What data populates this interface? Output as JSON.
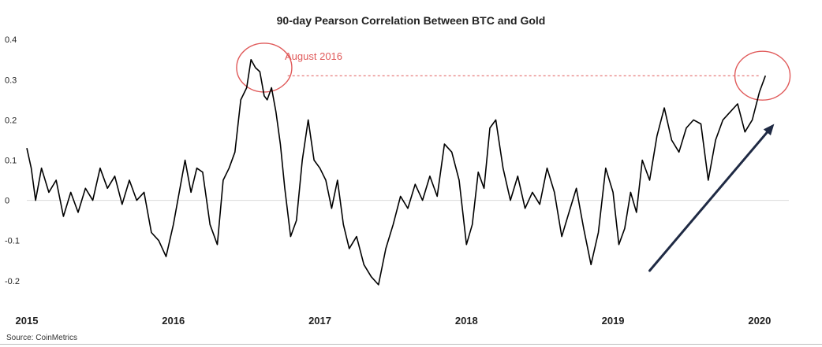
{
  "chart_data": {
    "type": "line",
    "title": "90-day Pearson Correlation Between BTC and Gold",
    "xlabel": "",
    "ylabel": "",
    "xlim": [
      2015.0,
      2020.2
    ],
    "ylim": [
      -0.22,
      0.42
    ],
    "y_ticks": [
      "0.4",
      "0.3",
      "0.2",
      "0.1",
      "0",
      "-0.1",
      "-0.2"
    ],
    "x_ticks": [
      "2015",
      "2016",
      "2017",
      "2018",
      "2019",
      "2020"
    ],
    "grid": false,
    "zero_line": true,
    "series": [
      {
        "name": "",
        "color": "#000000",
        "x": [
          2015.0,
          2015.03,
          2015.06,
          2015.1,
          2015.15,
          2015.2,
          2015.25,
          2015.3,
          2015.35,
          2015.4,
          2015.45,
          2015.5,
          2015.55,
          2015.6,
          2015.65,
          2015.7,
          2015.75,
          2015.8,
          2015.85,
          2015.9,
          2015.95,
          2016.0,
          2016.04,
          2016.08,
          2016.12,
          2016.16,
          2016.2,
          2016.25,
          2016.3,
          2016.34,
          2016.38,
          2016.42,
          2016.46,
          2016.5,
          2016.53,
          2016.56,
          2016.59,
          2016.62,
          2016.64,
          2016.67,
          2016.7,
          2016.73,
          2016.76,
          2016.8,
          2016.84,
          2016.88,
          2016.92,
          2016.96,
          2017.0,
          2017.04,
          2017.08,
          2017.12,
          2017.16,
          2017.2,
          2017.25,
          2017.3,
          2017.35,
          2017.4,
          2017.45,
          2017.5,
          2017.55,
          2017.6,
          2017.65,
          2017.7,
          2017.75,
          2017.8,
          2017.85,
          2017.9,
          2017.95,
          2018.0,
          2018.04,
          2018.08,
          2018.12,
          2018.16,
          2018.2,
          2018.25,
          2018.3,
          2018.35,
          2018.4,
          2018.45,
          2018.5,
          2018.55,
          2018.6,
          2018.65,
          2018.7,
          2018.75,
          2018.8,
          2018.85,
          2018.9,
          2018.95,
          2019.0,
          2019.04,
          2019.08,
          2019.12,
          2019.16,
          2019.2,
          2019.25,
          2019.3,
          2019.35,
          2019.4,
          2019.45,
          2019.5,
          2019.55,
          2019.6,
          2019.65,
          2019.7,
          2019.75,
          2019.8,
          2019.85,
          2019.9,
          2019.95,
          2020.0,
          2020.04
        ],
        "y": [
          0.13,
          0.08,
          0.0,
          0.08,
          0.02,
          0.05,
          -0.04,
          0.02,
          -0.03,
          0.03,
          0.0,
          0.08,
          0.03,
          0.06,
          -0.01,
          0.05,
          0.0,
          0.02,
          -0.08,
          -0.1,
          -0.14,
          -0.06,
          0.02,
          0.1,
          0.02,
          0.08,
          0.07,
          -0.06,
          -0.11,
          0.05,
          0.08,
          0.12,
          0.25,
          0.28,
          0.35,
          0.33,
          0.32,
          0.26,
          0.25,
          0.28,
          0.22,
          0.14,
          0.03,
          -0.09,
          -0.05,
          0.1,
          0.2,
          0.1,
          0.08,
          0.05,
          -0.02,
          0.05,
          -0.06,
          -0.12,
          -0.09,
          -0.16,
          -0.19,
          -0.21,
          -0.12,
          -0.06,
          0.01,
          -0.02,
          0.04,
          0.0,
          0.06,
          0.01,
          0.14,
          0.12,
          0.05,
          -0.11,
          -0.06,
          0.07,
          0.03,
          0.18,
          0.2,
          0.08,
          0.0,
          0.06,
          -0.02,
          0.02,
          -0.01,
          0.08,
          0.02,
          -0.09,
          -0.03,
          0.03,
          -0.07,
          -0.16,
          -0.08,
          0.08,
          0.02,
          -0.11,
          -0.07,
          0.02,
          -0.03,
          0.1,
          0.05,
          0.16,
          0.23,
          0.15,
          0.12,
          0.18,
          0.2,
          0.19,
          0.05,
          0.15,
          0.2,
          0.22,
          0.24,
          0.17,
          0.2,
          0.27,
          0.31
        ]
      }
    ],
    "annotations": [
      {
        "type": "text",
        "text": "August 2016",
        "color": "#e05a5a"
      },
      {
        "type": "circle",
        "x": 2016.62,
        "y": 0.33,
        "color": "#e05a5a"
      },
      {
        "type": "circle",
        "x": 2020.02,
        "y": 0.31,
        "color": "#e05a5a"
      },
      {
        "type": "dashed_line",
        "x_from": 2016.78,
        "x_to": 2020.0,
        "y": 0.31,
        "color": "#e05a5a"
      },
      {
        "type": "arrow",
        "x_from": 2019.25,
        "y_from": -0.175,
        "x_to": 2020.1,
        "y_to": 0.19,
        "color": "#1f2a44"
      }
    ],
    "source": "Source: CoinMetrics"
  }
}
